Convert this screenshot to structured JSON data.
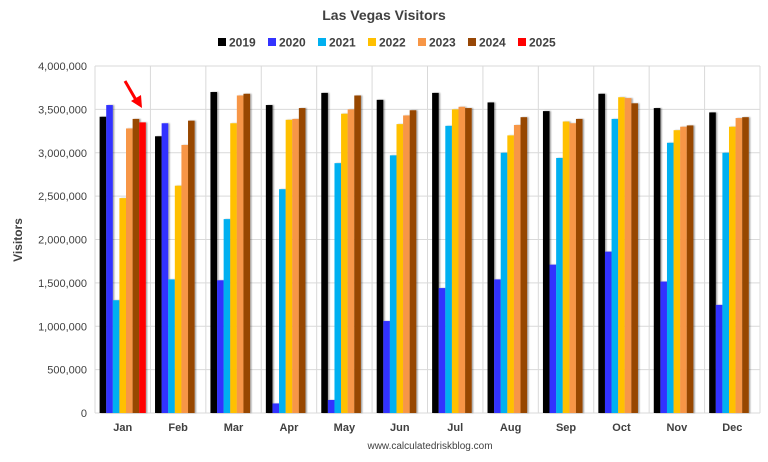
{
  "chart_data": {
    "type": "bar",
    "title": "Las Vegas Visitors",
    "xlabel": "",
    "ylabel": "Visitors",
    "ylim": [
      0,
      4000000
    ],
    "yticks": [
      0,
      500000,
      1000000,
      1500000,
      2000000,
      2500000,
      3000000,
      3500000,
      4000000
    ],
    "ytick_labels": [
      "0",
      "500,000",
      "1,000,000",
      "1,500,000",
      "2,000,000",
      "2,500,000",
      "3,000,000",
      "3,500,000",
      "4,000,000"
    ],
    "grid": true,
    "legend_position": "top",
    "categories": [
      "Jan",
      "Feb",
      "Mar",
      "Apr",
      "May",
      "Jun",
      "Jul",
      "Aug",
      "Sep",
      "Oct",
      "Nov",
      "Dec"
    ],
    "series": [
      {
        "name": "2019",
        "color": "#000000",
        "values": [
          3415000,
          3190000,
          3700000,
          3550000,
          3690000,
          3610000,
          3690000,
          3580000,
          3480000,
          3680000,
          3515000,
          3465000
        ]
      },
      {
        "name": "2020",
        "color": "#3333FF",
        "values": [
          3550000,
          3340000,
          1530000,
          110000,
          150000,
          1060000,
          1440000,
          1540000,
          1710000,
          1860000,
          1515000,
          1246000
        ]
      },
      {
        "name": "2021",
        "color": "#00B0F0",
        "values": [
          1300000,
          1540000,
          2235000,
          2580000,
          2880000,
          2970000,
          3310000,
          3000000,
          2940000,
          3390000,
          3115000,
          3000000
        ]
      },
      {
        "name": "2022",
        "color": "#FFC000",
        "values": [
          2477000,
          2620000,
          3340000,
          3380000,
          3450000,
          3330000,
          3500000,
          3200000,
          3360000,
          3640000,
          3260000,
          3300000
        ]
      },
      {
        "name": "2023",
        "color": "#F79646",
        "values": [
          3280000,
          3090000,
          3660000,
          3390000,
          3500000,
          3430000,
          3530000,
          3320000,
          3340000,
          3630000,
          3300000,
          3400000
        ]
      },
      {
        "name": "2024",
        "color": "#974706",
        "values": [
          3390000,
          3370000,
          3680000,
          3515000,
          3660000,
          3490000,
          3515000,
          3410000,
          3390000,
          3570000,
          3315000,
          3410000
        ]
      },
      {
        "name": "2025",
        "color": "#FF0000",
        "values": [
          3350000,
          null,
          null,
          null,
          null,
          null,
          null,
          null,
          null,
          null,
          null,
          null
        ]
      }
    ],
    "annotations": [
      {
        "type": "arrow",
        "color": "#FF0000",
        "points_to": "Jan 2025"
      }
    ],
    "source": "www.calculatedriskblog.com"
  }
}
